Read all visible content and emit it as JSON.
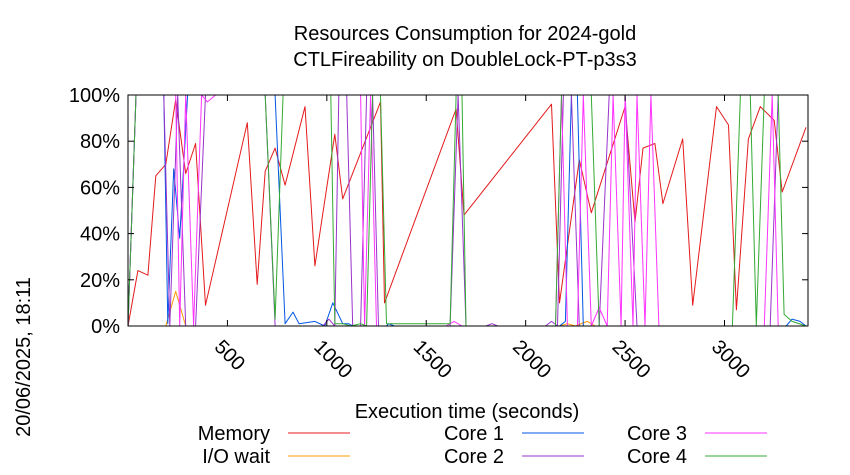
{
  "chart_data": {
    "type": "line",
    "title": "Resources Consumption for 2024-gold",
    "subtitle": "CTLFireability on DoubleLock-PT-p3s3",
    "xlabel": "Execution time (seconds)",
    "ylabel": "",
    "side_label": "20/06/2025, 18:11",
    "xlim": [
      0,
      3420
    ],
    "ylim": [
      0,
      100
    ],
    "x_ticks": [
      500,
      1000,
      1500,
      2000,
      2500,
      3000
    ],
    "x_tick_labels": [
      "500",
      "1000",
      "1500",
      "2000",
      "2500",
      "3000"
    ],
    "y_ticks": [
      0,
      20,
      40,
      60,
      80,
      100
    ],
    "y_tick_labels": [
      "0%",
      "20%",
      "40%",
      "60%",
      "80%",
      "100%"
    ],
    "legend_position": "bottom",
    "series": [
      {
        "name": "Memory",
        "color": "#e41a1c",
        "points": [
          [
            0,
            0
          ],
          [
            50,
            24
          ],
          [
            100,
            22
          ],
          [
            140,
            65
          ],
          [
            190,
            70
          ],
          [
            240,
            98
          ],
          [
            290,
            66
          ],
          [
            340,
            79
          ],
          [
            390,
            9
          ],
          [
            600,
            88
          ],
          [
            650,
            18
          ],
          [
            690,
            67
          ],
          [
            740,
            77
          ],
          [
            790,
            61
          ],
          [
            890,
            95
          ],
          [
            940,
            26
          ],
          [
            1040,
            83
          ],
          [
            1080,
            55
          ],
          [
            1270,
            97
          ],
          [
            1290,
            10
          ],
          [
            1650,
            94
          ],
          [
            1690,
            48
          ],
          [
            2130,
            96
          ],
          [
            2170,
            10
          ],
          [
            2270,
            72
          ],
          [
            2330,
            49
          ],
          [
            2500,
            95
          ],
          [
            2550,
            45
          ],
          [
            2590,
            77
          ],
          [
            2650,
            79
          ],
          [
            2690,
            53
          ],
          [
            2790,
            81
          ],
          [
            2840,
            9
          ],
          [
            2960,
            95
          ],
          [
            3020,
            87
          ],
          [
            3060,
            7
          ],
          [
            3120,
            81
          ],
          [
            3180,
            95
          ],
          [
            3250,
            89
          ],
          [
            3290,
            58
          ],
          [
            3410,
            86
          ]
        ]
      },
      {
        "name": "I/O wait",
        "color": "#ff9900",
        "points": [
          [
            0,
            0
          ],
          [
            190,
            0
          ],
          [
            240,
            15
          ],
          [
            290,
            0
          ],
          [
            2170,
            0
          ],
          [
            2210,
            1
          ],
          [
            2250,
            0
          ],
          [
            2310,
            2
          ],
          [
            2350,
            0
          ],
          [
            3410,
            0
          ]
        ]
      },
      {
        "name": "Core 1",
        "color": "#0057e7",
        "points": [
          [
            0,
            0
          ],
          [
            40,
            100
          ],
          [
            180,
            100
          ],
          [
            200,
            1
          ],
          [
            230,
            68
          ],
          [
            260,
            38
          ],
          [
            300,
            100
          ],
          [
            690,
            100
          ],
          [
            740,
            100
          ],
          [
            790,
            1
          ],
          [
            830,
            6
          ],
          [
            860,
            1
          ],
          [
            940,
            2
          ],
          [
            990,
            0
          ],
          [
            1030,
            10
          ],
          [
            1080,
            1
          ],
          [
            1110,
            1
          ],
          [
            1130,
            0
          ],
          [
            1300,
            0
          ],
          [
            1310,
            1
          ],
          [
            1340,
            0
          ],
          [
            2170,
            0
          ],
          [
            2200,
            2
          ],
          [
            2230,
            100
          ],
          [
            2260,
            100
          ],
          [
            2290,
            0
          ],
          [
            2330,
            0
          ],
          [
            3310,
            0
          ],
          [
            3340,
            3
          ],
          [
            3380,
            2
          ],
          [
            3410,
            0
          ]
        ]
      },
      {
        "name": "Core 2",
        "color": "#9933cc",
        "points": [
          [
            0,
            0
          ],
          [
            40,
            100
          ],
          [
            180,
            100
          ],
          [
            210,
            0
          ],
          [
            250,
            100
          ],
          [
            290,
            0
          ],
          [
            340,
            0
          ],
          [
            390,
            100
          ],
          [
            440,
            100
          ],
          [
            690,
            100
          ],
          [
            740,
            0
          ],
          [
            980,
            0
          ],
          [
            1010,
            3
          ],
          [
            1040,
            0
          ],
          [
            1060,
            100
          ],
          [
            1100,
            100
          ],
          [
            1130,
            0
          ],
          [
            1170,
            0
          ],
          [
            1200,
            100
          ],
          [
            1230,
            100
          ],
          [
            1260,
            0
          ],
          [
            1620,
            0
          ],
          [
            1660,
            100
          ],
          [
            1700,
            0
          ],
          [
            1800,
            0
          ],
          [
            1830,
            1
          ],
          [
            1860,
            0
          ],
          [
            2100,
            0
          ],
          [
            2130,
            2
          ],
          [
            2160,
            0
          ],
          [
            2190,
            100
          ],
          [
            2230,
            100
          ],
          [
            2270,
            0
          ],
          [
            2370,
            0
          ],
          [
            2420,
            100
          ],
          [
            2460,
            100
          ],
          [
            2500,
            100
          ],
          [
            2560,
            0
          ],
          [
            3230,
            0
          ],
          [
            3270,
            100
          ],
          [
            3410,
            100
          ]
        ]
      },
      {
        "name": "Core 3",
        "color": "#ff33ff",
        "points": [
          [
            0,
            0
          ],
          [
            40,
            100
          ],
          [
            240,
            100
          ],
          [
            260,
            0
          ],
          [
            290,
            100
          ],
          [
            330,
            0
          ],
          [
            370,
            100
          ],
          [
            400,
            97
          ],
          [
            440,
            100
          ],
          [
            1170,
            100
          ],
          [
            1190,
            0
          ],
          [
            1220,
            100
          ],
          [
            1250,
            0
          ],
          [
            1600,
            0
          ],
          [
            1640,
            2
          ],
          [
            1680,
            0
          ],
          [
            2150,
            0
          ],
          [
            2180,
            100
          ],
          [
            2210,
            0
          ],
          [
            2260,
            0
          ],
          [
            2290,
            100
          ],
          [
            2330,
            0
          ],
          [
            2370,
            8
          ],
          [
            2410,
            0
          ],
          [
            2440,
            100
          ],
          [
            2480,
            0
          ],
          [
            2500,
            100
          ],
          [
            2540,
            0
          ],
          [
            2560,
            100
          ],
          [
            2600,
            0
          ],
          [
            2630,
            100
          ],
          [
            2670,
            0
          ],
          [
            3200,
            0
          ],
          [
            3240,
            100
          ],
          [
            3270,
            0
          ],
          [
            3410,
            0
          ]
        ]
      },
      {
        "name": "Core 4",
        "color": "#33aa33",
        "points": [
          [
            0,
            0
          ],
          [
            40,
            100
          ],
          [
            690,
            100
          ],
          [
            740,
            3
          ],
          [
            780,
            100
          ],
          [
            860,
            100
          ],
          [
            900,
            100
          ],
          [
            940,
            100
          ],
          [
            980,
            100
          ],
          [
            1020,
            100
          ],
          [
            1040,
            1
          ],
          [
            1080,
            1
          ],
          [
            1120,
            0
          ],
          [
            1170,
            1
          ],
          [
            1200,
            0
          ],
          [
            1230,
            100
          ],
          [
            1270,
            100
          ],
          [
            1300,
            1
          ],
          [
            1620,
            1
          ],
          [
            1650,
            100
          ],
          [
            1680,
            100
          ],
          [
            1700,
            0
          ],
          [
            2150,
            0
          ],
          [
            2180,
            100
          ],
          [
            2330,
            100
          ],
          [
            2370,
            0
          ],
          [
            3040,
            0
          ],
          [
            3080,
            100
          ],
          [
            3130,
            100
          ],
          [
            3160,
            0
          ],
          [
            3200,
            100
          ],
          [
            3270,
            100
          ],
          [
            3300,
            5
          ],
          [
            3340,
            2
          ],
          [
            3410,
            0
          ]
        ]
      }
    ]
  }
}
